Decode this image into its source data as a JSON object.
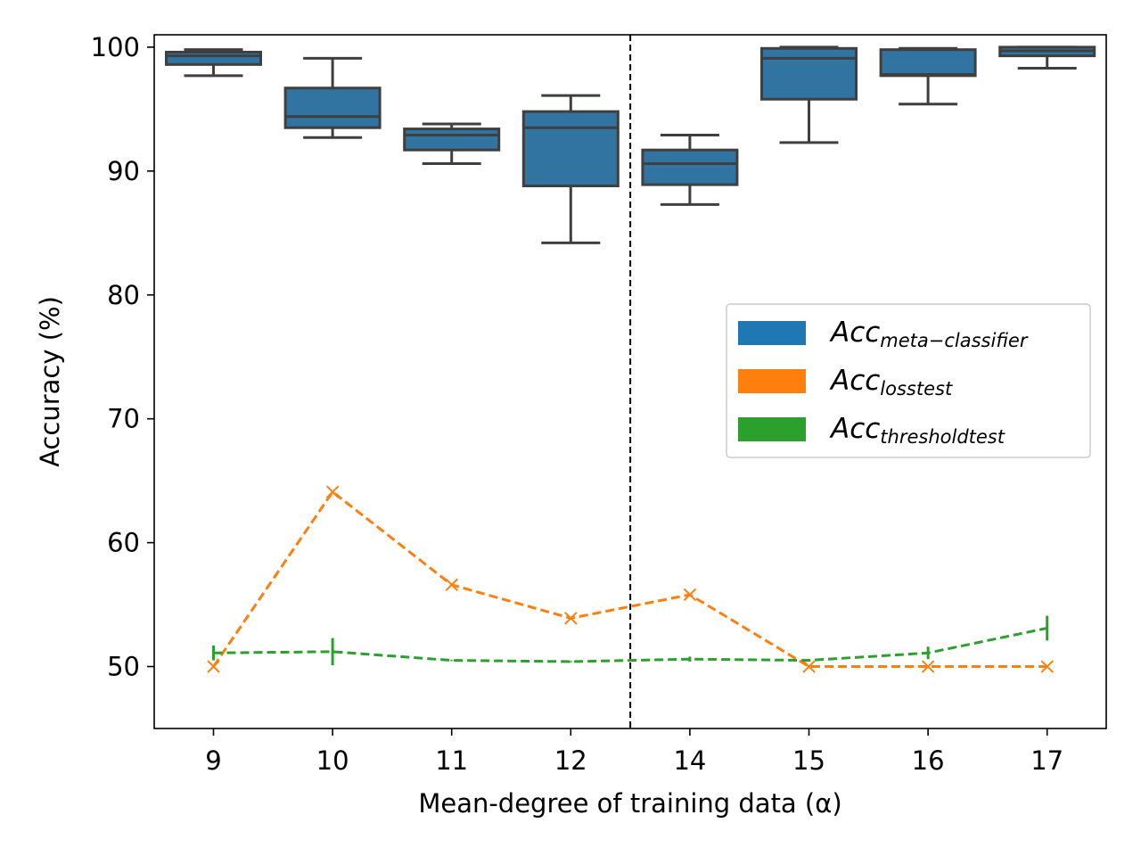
{
  "chart_data": {
    "type": "box",
    "xlabel": "Mean-degree of training data (α)",
    "ylabel": "Accuracy (%)",
    "categories": [
      "9",
      "10",
      "11",
      "12",
      "14",
      "15",
      "16",
      "17"
    ],
    "ylim": [
      45,
      101
    ],
    "yticks": [
      50,
      60,
      70,
      80,
      90,
      100
    ],
    "grid": false,
    "legend_position": "center-right",
    "divider_between": [
      "12",
      "14"
    ],
    "box_series": {
      "name": "Acc_meta-classifier",
      "color": "#1f77b4",
      "boxes": [
        {
          "category": "9",
          "whisker_low": 97.7,
          "q1": 98.6,
          "median": 99.3,
          "q3": 99.6,
          "whisker_high": 99.8
        },
        {
          "category": "10",
          "whisker_low": 92.7,
          "q1": 93.5,
          "median": 94.4,
          "q3": 96.7,
          "whisker_high": 99.1
        },
        {
          "category": "11",
          "whisker_low": 90.6,
          "q1": 91.7,
          "median": 92.9,
          "q3": 93.4,
          "whisker_high": 93.8
        },
        {
          "category": "12",
          "whisker_low": 84.2,
          "q1": 88.8,
          "median": 93.5,
          "q3": 94.8,
          "whisker_high": 96.1
        },
        {
          "category": "14",
          "whisker_low": 87.3,
          "q1": 88.9,
          "median": 90.6,
          "q3": 91.7,
          "whisker_high": 92.9
        },
        {
          "category": "15",
          "whisker_low": 92.3,
          "q1": 95.8,
          "median": 99.1,
          "q3": 99.9,
          "whisker_high": 100.0
        },
        {
          "category": "16",
          "whisker_low": 95.4,
          "q1": 97.7,
          "median": 97.8,
          "q3": 99.8,
          "whisker_high": 99.9
        },
        {
          "category": "17",
          "whisker_low": 98.3,
          "q1": 99.3,
          "median": 99.7,
          "q3": 100.0,
          "whisker_high": 100.0
        }
      ]
    },
    "line_series": [
      {
        "name": "Acc_losstest",
        "color": "#ff7f0e",
        "marker": "x",
        "values": [
          50.0,
          64.1,
          56.6,
          53.9,
          55.8,
          50.0,
          50.0,
          50.0
        ]
      },
      {
        "name": "Acc_thresholdtest",
        "color": "#2ca02c",
        "marker": "errorbar",
        "values": [
          51.1,
          51.2,
          50.5,
          50.4,
          50.6,
          50.5,
          51.1,
          53.1
        ],
        "err": [
          0.6,
          1.1,
          0.05,
          0.05,
          0.2,
          0.1,
          0.5,
          1.0
        ]
      }
    ],
    "legend": [
      {
        "base": "Acc",
        "sub": "meta−classifier",
        "color": "#1f77b4"
      },
      {
        "base": "Acc",
        "sub": "losstest",
        "color": "#ff7f0e"
      },
      {
        "base": "Acc",
        "sub": "thresholdtest",
        "color": "#2ca02c"
      }
    ]
  }
}
